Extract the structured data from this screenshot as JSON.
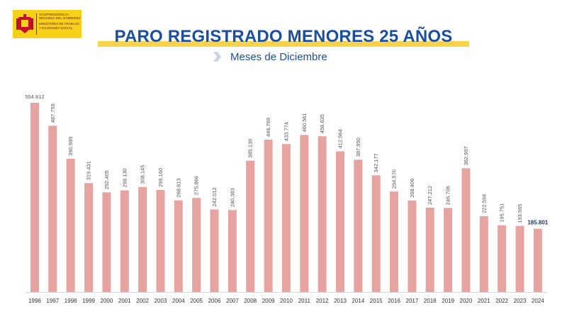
{
  "header": {
    "logo_line1": "VICEPRESIDENCIA SEGUNDA DEL GOBIERNO",
    "logo_line2": "MINISTERIO DE TRABAJO Y ECONOMÍA SOCIAL"
  },
  "colors": {
    "bar": "#e6a3a0",
    "title": "#1b4f9c",
    "band": "#f7d24a",
    "logo_bg": "#f7d117"
  },
  "chart_data": {
    "type": "bar",
    "title": "PARO REGISTRADO MENORES 25 AÑOS",
    "subtitle": "Meses de Diciembre",
    "categories": [
      "1996",
      "1997",
      "1998",
      "1999",
      "2000",
      "2001",
      "2002",
      "2003",
      "2004",
      "2005",
      "2006",
      "2007",
      "2008",
      "2009",
      "2010",
      "2011",
      "2012",
      "2013",
      "2014",
      "2015",
      "2016",
      "2017",
      "2018",
      "2019",
      "2020",
      "2021",
      "2022",
      "2023",
      "2024"
    ],
    "values": [
      554812,
      487759,
      390989,
      319431,
      292405,
      298130,
      308145,
      299160,
      268813,
      275866,
      242012,
      240383,
      385130,
      446769,
      433774,
      460561,
      456635,
      412564,
      387950,
      342177,
      294570,
      268406,
      247212,
      246706,
      362997,
      222594,
      195751,
      193965,
      185801
    ],
    "labels": [
      "554 812",
      "487.759",
      "390.989",
      "319.431",
      "292.405",
      "298.130",
      "308.145",
      "299.160",
      "268.813",
      "275.866",
      "242.012",
      "240.383",
      "385.130",
      "446.769",
      "433.774",
      "460.561",
      "456.635",
      "412.564",
      "387.950",
      "342.177",
      "294.570",
      "268.406",
      "247.212",
      "246.706",
      "362.997",
      "222.594",
      "195.751",
      "193.965",
      "185.801"
    ],
    "highlight_index": 28,
    "ylim": [
      0,
      560000
    ],
    "grid": false,
    "legend": "none"
  }
}
